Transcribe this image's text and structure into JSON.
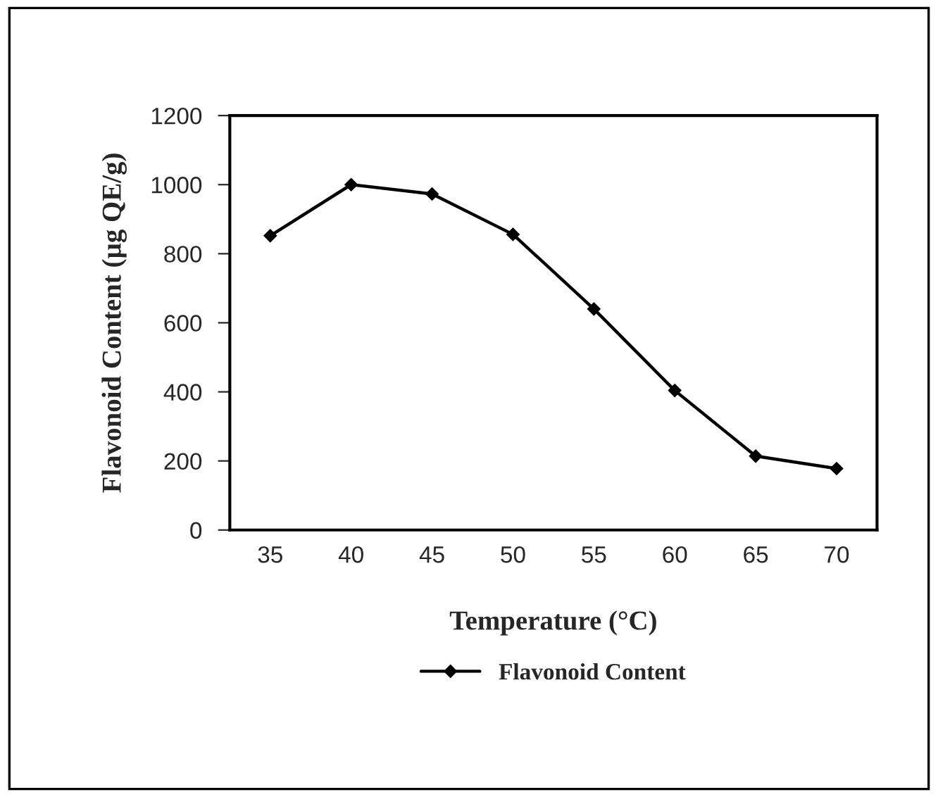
{
  "chart_data": {
    "type": "line",
    "xlabel": "Temperature (°C)",
    "ylabel": "Flavonoid Content (µg QE/g)",
    "categories": [
      "35",
      "40",
      "45",
      "50",
      "55",
      "60",
      "65",
      "70"
    ],
    "series": [
      {
        "name": "Flavonoid Content",
        "color": "#000000",
        "values": [
          852,
          1000,
          973,
          856,
          640,
          404,
          214,
          178
        ]
      }
    ],
    "ylim": [
      0,
      1200
    ],
    "yticks": [
      0,
      200,
      400,
      600,
      800,
      1000,
      1200
    ],
    "marker": "diamond",
    "line_style": "solid",
    "grid": false,
    "legend": "bottom"
  }
}
